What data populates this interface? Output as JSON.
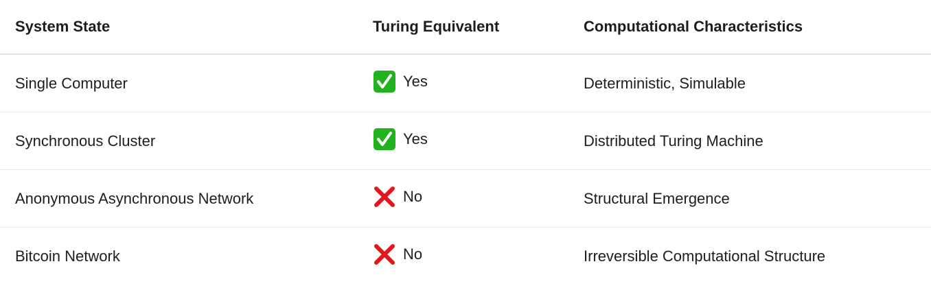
{
  "table": {
    "headers": [
      "System State",
      "Turing Equivalent",
      "Computational Characteristics"
    ],
    "rows": [
      {
        "state": "Single Computer",
        "icon": "check-mark-icon",
        "equivalent": "Yes",
        "characteristics": "Deterministic, Simulable"
      },
      {
        "state": "Synchronous Cluster",
        "icon": "check-mark-icon",
        "equivalent": "Yes",
        "characteristics": "Distributed Turing Machine"
      },
      {
        "state": "Anonymous Asynchronous Network",
        "icon": "cross-mark-icon",
        "equivalent": "No",
        "characteristics": "Structural Emergence"
      },
      {
        "state": "Bitcoin Network",
        "icon": "cross-mark-icon",
        "equivalent": "No",
        "characteristics": "Irreversible Computational Structure"
      }
    ]
  },
  "colors": {
    "yes": "#22b21e",
    "no": "#e3161b"
  }
}
